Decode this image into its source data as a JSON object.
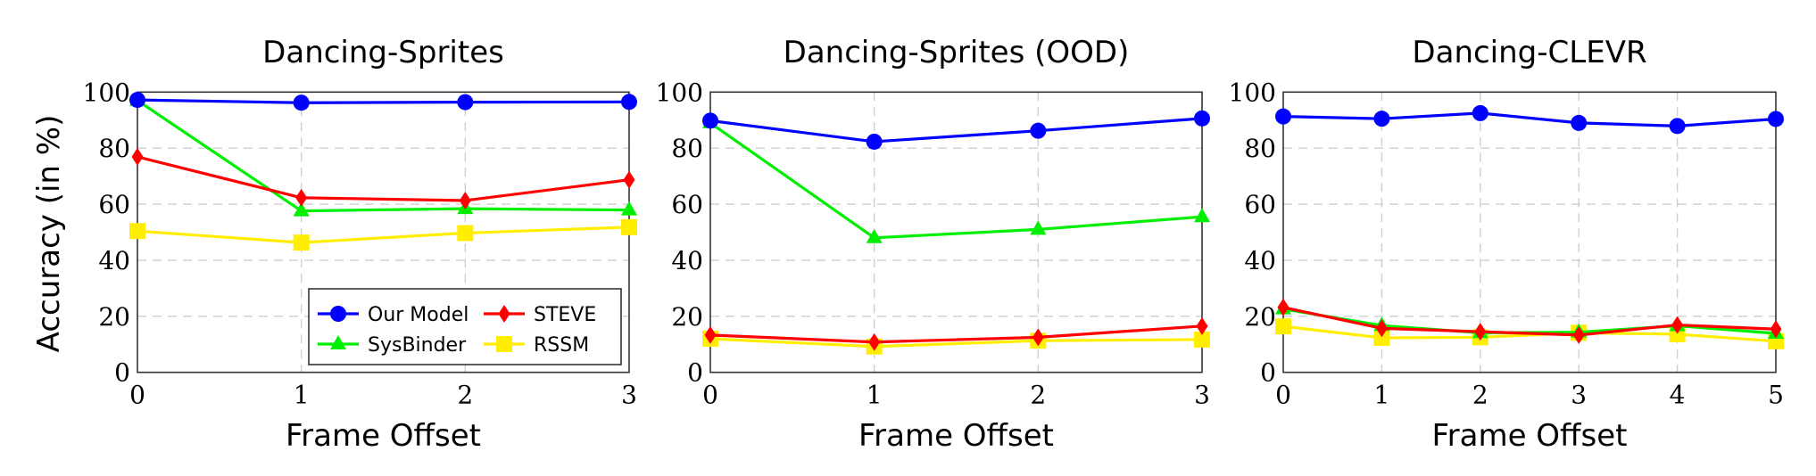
{
  "figure": {
    "ylabel": "Accuracy (in %)",
    "xlabel": "Frame Offset",
    "legend": [
      {
        "name": "Our Model",
        "color": "#0000FF",
        "marker": "circle"
      },
      {
        "name": "STEVE",
        "color": "#FF0000",
        "marker": "diamond"
      },
      {
        "name": "SysBinder",
        "color": "#00EE00",
        "marker": "triangle"
      },
      {
        "name": "RSSM",
        "color": "#FFEE00",
        "marker": "square"
      }
    ]
  },
  "chart_data": [
    {
      "type": "line",
      "title": "Dancing-Sprites",
      "xlabel": "Frame Offset",
      "ylabel": "Accuracy (in %)",
      "x": [
        0,
        1,
        2,
        3
      ],
      "ylim": [
        0,
        100
      ],
      "yticks": [
        0,
        20,
        40,
        60,
        80,
        100
      ],
      "grid": true,
      "legend_position": "lower right",
      "series": [
        {
          "name": "Our Model",
          "values": [
            97.2,
            96.2,
            96.4,
            96.5
          ]
        },
        {
          "name": "STEVE",
          "values": [
            76.9,
            62.3,
            61.3,
            68.7
          ]
        },
        {
          "name": "SysBinder",
          "values": [
            97.0,
            57.6,
            58.4,
            57.9
          ]
        },
        {
          "name": "RSSM",
          "values": [
            50.4,
            46.3,
            49.7,
            51.8
          ]
        }
      ]
    },
    {
      "type": "line",
      "title": "Dancing-Sprites (OOD)",
      "xlabel": "Frame Offset",
      "ylabel": "",
      "x": [
        0,
        1,
        2,
        3
      ],
      "ylim": [
        0,
        100
      ],
      "yticks": [
        0,
        20,
        40,
        60,
        80,
        100
      ],
      "grid": true,
      "series": [
        {
          "name": "Our Model",
          "values": [
            89.8,
            82.3,
            86.2,
            90.6
          ]
        },
        {
          "name": "STEVE",
          "values": [
            13.3,
            10.8,
            12.5,
            16.5
          ]
        },
        {
          "name": "SysBinder",
          "values": [
            89.0,
            48.0,
            51.0,
            55.5
          ]
        },
        {
          "name": "RSSM",
          "values": [
            12.0,
            9.2,
            11.3,
            11.7
          ]
        }
      ]
    },
    {
      "type": "line",
      "title": "Dancing-CLEVR",
      "xlabel": "Frame Offset",
      "ylabel": "",
      "x": [
        0,
        1,
        2,
        3,
        4,
        5
      ],
      "ylim": [
        0,
        100
      ],
      "yticks": [
        0,
        20,
        40,
        60,
        80,
        100
      ],
      "grid": true,
      "series": [
        {
          "name": "Our Model",
          "values": [
            91.3,
            90.5,
            92.5,
            89.0,
            87.9,
            90.4
          ]
        },
        {
          "name": "STEVE",
          "values": [
            23.2,
            15.7,
            14.5,
            13.3,
            16.9,
            15.4
          ]
        },
        {
          "name": "SysBinder",
          "values": [
            22.6,
            16.7,
            14.1,
            14.3,
            16.6,
            13.9
          ]
        },
        {
          "name": "RSSM",
          "values": [
            16.4,
            12.3,
            12.5,
            14.1,
            13.6,
            11.1
          ]
        }
      ]
    }
  ]
}
